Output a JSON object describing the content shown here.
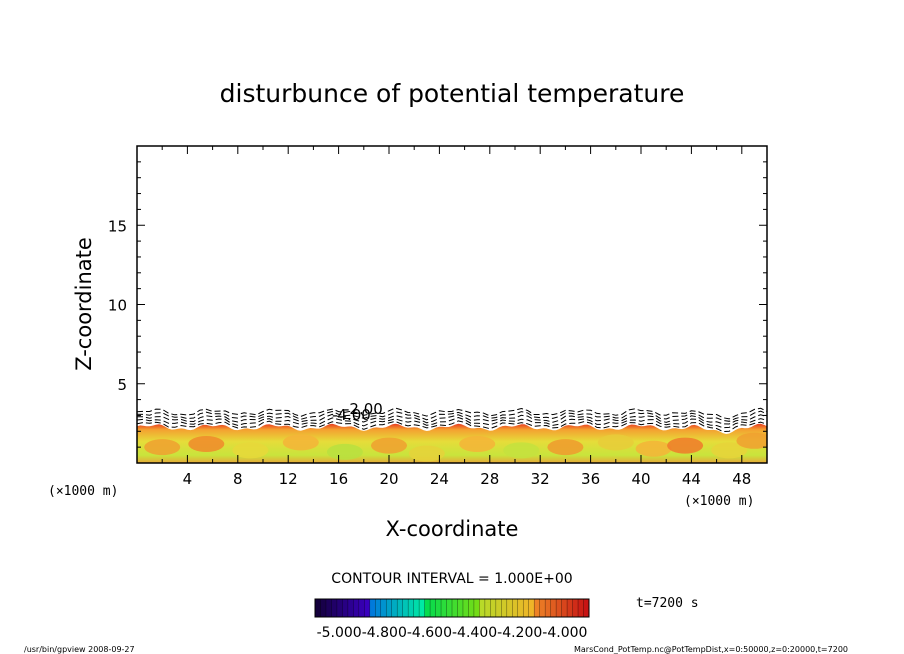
{
  "chart_data": {
    "type": "heatmap",
    "title": "disturbunce of potential temperature",
    "xlabel": "X-coordinate",
    "ylabel": "Z-coordinate",
    "x_unit": "(×1000 m)",
    "z_unit": "(×1000 m)",
    "xlim": [
      0,
      50
    ],
    "ylim": [
      0,
      20
    ],
    "x_ticks": [
      "4",
      "8",
      "12",
      "16",
      "20",
      "24",
      "28",
      "32",
      "36",
      "40",
      "44",
      "48"
    ],
    "y_ticks": [
      "5",
      "10",
      "15"
    ],
    "contour_labels": [
      "-2.00",
      "-4.00"
    ],
    "contour_interval": "CONTOUR INTERVAL = 1.000E+00",
    "time": "t=7200 s",
    "colorbar_labels": [
      "-5.000",
      "-4.800",
      "-4.600",
      "-4.400",
      "-4.200",
      "-4.000"
    ]
  },
  "footer": {
    "left": "/usr/bin/gpview   2008-09-27",
    "right": "MarsCond_PotTemp.nc@PotTempDist,x=0:50000,z=0:20000,t=7200"
  }
}
